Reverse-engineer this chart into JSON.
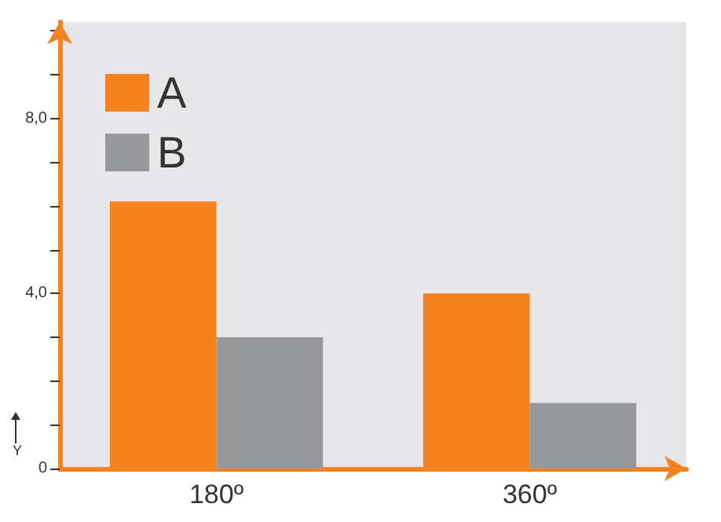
{
  "chart_data": {
    "type": "bar",
    "ylabel": "Y",
    "categories": [
      "180º",
      "360º"
    ],
    "series": [
      {
        "name": "A",
        "color": "#f5821f",
        "values": [
          6.1,
          4.0
        ]
      },
      {
        "name": "B",
        "color": "#98999b",
        "values": [
          3.0,
          1.5
        ]
      }
    ],
    "ylim": [
      0,
      10.2
    ],
    "yticks": [
      {
        "value": 0,
        "label": "0"
      },
      {
        "value": 1,
        "label": null
      },
      {
        "value": 2,
        "label": null
      },
      {
        "value": 3,
        "label": null
      },
      {
        "value": 4,
        "label": "4,0"
      },
      {
        "value": 5,
        "label": null
      },
      {
        "value": 6,
        "label": null
      },
      {
        "value": 7,
        "label": null
      },
      {
        "value": 8,
        "label": "8,0"
      },
      {
        "value": 9,
        "label": null
      },
      {
        "value": 10,
        "label": null
      }
    ],
    "grid": false,
    "legend": "top left"
  }
}
